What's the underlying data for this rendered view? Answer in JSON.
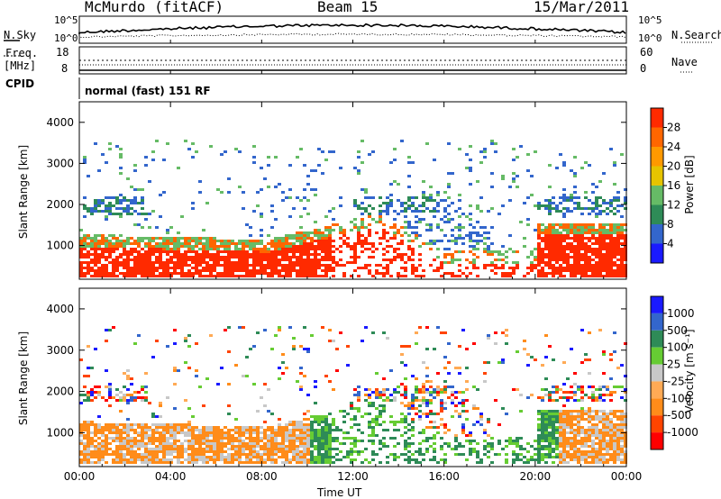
{
  "header": {
    "station": "McMurdo (fitACF)",
    "beam": "Beam 15",
    "date": "15/Mar/2011"
  },
  "status_panel": {
    "nsky_label": "N.Sky",
    "nsearch_label": "N.Search",
    "noise_ticks": [
      "10^5",
      "10^0"
    ],
    "freq_label_1": "Freq.",
    "freq_label_2": "[MHz]",
    "freq_ticks": [
      "18",
      "8"
    ],
    "nave_label": "Nave",
    "nave_ticks": [
      "60",
      "0"
    ],
    "cpid_label": "CPID",
    "cpid_value": "normal (fast) 151 RF"
  },
  "colors": {
    "power": [
      "#1a1aff",
      "#3366cc",
      "#2e8b57",
      "#66bb66",
      "#e6c400",
      "#ff9900",
      "#ff6600",
      "#ff2a00"
    ],
    "velocity": [
      "#ff0000",
      "#ff4400",
      "#ff8c1a",
      "#ffaa55",
      "#c8c8c8",
      "#66cc33",
      "#2e8b57",
      "#3366cc",
      "#1a1aff"
    ]
  },
  "chart_data": [
    {
      "type": "heatmap",
      "panel": "power",
      "ylabel": "Slant Range [km]",
      "colorbar_label": "Power [dB]",
      "colorbar_ticks": [
        "28",
        "24",
        "20",
        "16",
        "12",
        "8",
        "4"
      ],
      "yticks": [
        "4000",
        "3000",
        "2000",
        "1000"
      ],
      "ylim": [
        180,
        4500
      ],
      "xlim": [
        0,
        24
      ]
    },
    {
      "type": "heatmap",
      "panel": "velocity",
      "ylabel": "Slant Range [km]",
      "colorbar_label": "Velocity [m s⁻¹]",
      "colorbar_ticks": [
        "1000",
        "500",
        "100",
        "25",
        "-25",
        "-100",
        "-500",
        "-1000"
      ],
      "yticks": [
        "4000",
        "3000",
        "2000",
        "1000"
      ],
      "ylim": [
        180,
        4500
      ],
      "xlim": [
        0,
        24
      ],
      "xticks": [
        "00:00",
        "04:00",
        "08:00",
        "12:00",
        "16:00",
        "20:00",
        "00:00"
      ],
      "xlabel": "Time UT"
    }
  ]
}
